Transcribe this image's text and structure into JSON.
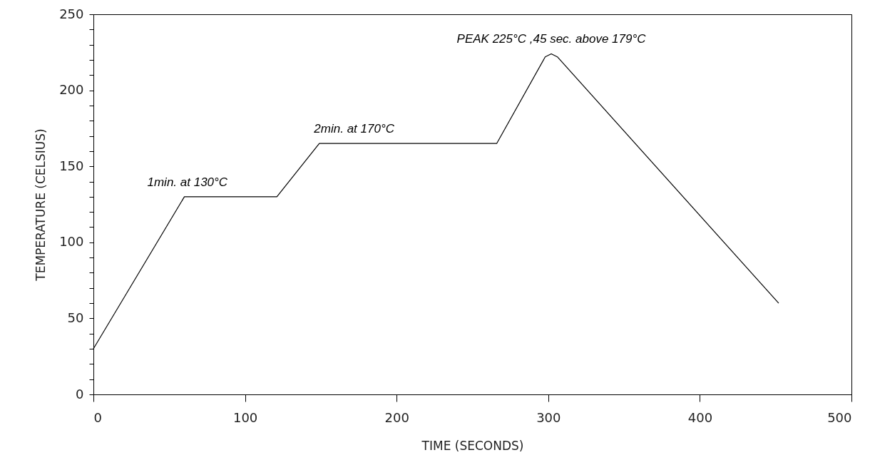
{
  "chart_data": {
    "type": "line",
    "xlabel": "TIME (SECONDS)",
    "ylabel": "TEMPERATURE (CELSIUS)",
    "x": [
      0,
      60,
      121,
      149,
      266,
      298,
      302,
      306,
      452
    ],
    "series": [
      {
        "color": "#000000",
        "values": [
          30,
          130,
          130,
          165,
          165,
          222,
          224,
          222,
          60
        ]
      }
    ],
    "xlim": [
      0,
      500
    ],
    "xticks": [
      0,
      100,
      200,
      300,
      400,
      500
    ],
    "ylim": [
      0,
      250
    ],
    "yticks": [
      0,
      {
        "value": 10,
        "label": null
      },
      {
        "value": 20,
        "label": null
      },
      {
        "value": 30,
        "label": null
      },
      {
        "value": 40,
        "label": null
      },
      50,
      {
        "value": 60,
        "label": null
      },
      {
        "value": 70,
        "label": null
      },
      {
        "value": 80,
        "label": null
      },
      {
        "value": 90,
        "label": null
      },
      100,
      {
        "value": 110,
        "label": null
      },
      {
        "value": 120,
        "label": null
      },
      {
        "value": 130,
        "label": null
      },
      {
        "value": 140,
        "label": null
      },
      150,
      {
        "value": 160,
        "label": null
      },
      {
        "value": 170,
        "label": null
      },
      {
        "value": 180,
        "label": null
      },
      {
        "value": 190,
        "label": null
      },
      200,
      {
        "value": 210,
        "label": null
      },
      {
        "value": 220,
        "label": null
      },
      {
        "value": 230,
        "label": null
      },
      {
        "value": 240,
        "label": null
      },
      250
    ],
    "annotations": [
      {
        "text": "1min. at 130°C",
        "x": 62,
        "y": 130
      },
      {
        "text": "2min. at 170°C",
        "x": 172,
        "y": 165
      },
      {
        "text": "PEAK 225°C ,45 sec. above 179°C",
        "x": 302,
        "y": 224
      }
    ],
    "grid": false,
    "marker": "none",
    "line_style": "solid"
  }
}
